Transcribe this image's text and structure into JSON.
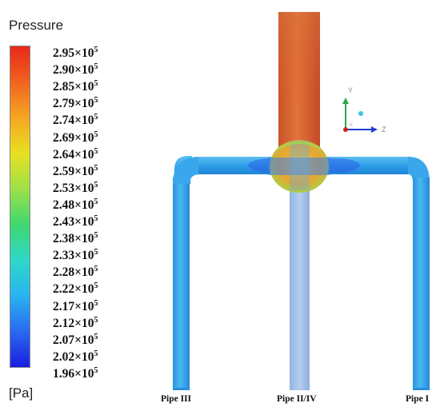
{
  "legend": {
    "title": "Pressure",
    "unit": "[Pa]",
    "exponent_base": "×10",
    "exponent": "5",
    "ticks": [
      "2.95",
      "2.90",
      "2.85",
      "2.79",
      "2.74",
      "2.69",
      "2.64",
      "2.59",
      "2.53",
      "2.48",
      "2.43",
      "2.38",
      "2.33",
      "2.28",
      "2.22",
      "2.17",
      "2.12",
      "2.07",
      "2.02",
      "1.96"
    ],
    "colormap": [
      "#e8281c",
      "#f0641e",
      "#f5a623",
      "#e8e020",
      "#9ee04a",
      "#3fd76e",
      "#2fd8c8",
      "#27b4f0",
      "#2a6af0",
      "#1a1ee0"
    ]
  },
  "axes_triad": {
    "y_label": "Y",
    "z_label": "Z",
    "x_label": "X"
  },
  "pipes": {
    "left": "Pipe III",
    "center": "Pipe II/IV",
    "right": "Pipe I"
  },
  "colors": {
    "vertical_pipe": "#d96a35",
    "horizontal_pipe": "#3aa7ec",
    "junction": "#e2a534",
    "center_pipe": "#8db5e4"
  }
}
